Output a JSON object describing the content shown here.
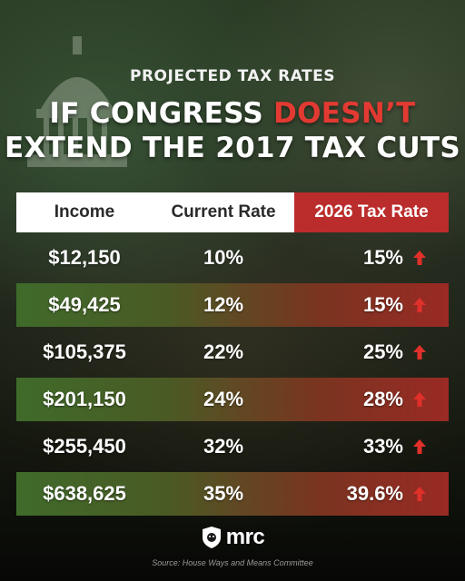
{
  "header": {
    "kicker": "PROJECTED TAX RATES",
    "title_line1_part1": "IF CONGRESS ",
    "title_line1_highlight": "DOESN’T",
    "title_line2": "EXTEND THE 2017 TAX CUTS"
  },
  "table": {
    "columns": [
      "Income",
      "Current Rate",
      "2026 Tax Rate"
    ],
    "rows": [
      {
        "income": "$12,150",
        "current": "10%",
        "rate_2026": "15%"
      },
      {
        "income": "$49,425",
        "current": "12%",
        "rate_2026": "15%"
      },
      {
        "income": "$105,375",
        "current": "22%",
        "rate_2026": "25%"
      },
      {
        "income": "$201,150",
        "current": "24%",
        "rate_2026": "28%"
      },
      {
        "income": "$255,450",
        "current": "32%",
        "rate_2026": "33%"
      },
      {
        "income": "$638,625",
        "current": "35%",
        "rate_2026": "39.6%"
      }
    ]
  },
  "footer": {
    "logo_text": "mrc",
    "source": "Source: House Ways and Means Committee"
  },
  "colors": {
    "accent_red": "#e23a32",
    "header_red": "#bb2c2c",
    "arrow_red": "#e0302a"
  },
  "icons": {
    "arrow": "arrow-up-icon",
    "logo": "mrc-logo-icon",
    "background": "capitol-dome-icon"
  }
}
